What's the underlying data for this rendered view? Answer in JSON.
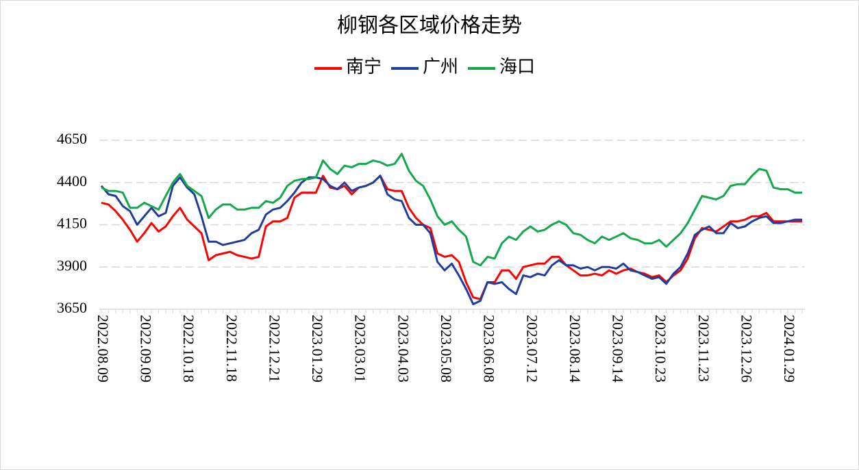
{
  "chart_data": {
    "type": "line",
    "title": "柳钢各区域价格走势",
    "categories": [
      "2022.08.09",
      null,
      null,
      null,
      null,
      null,
      "2022.09.09",
      null,
      null,
      null,
      null,
      null,
      "2022.10.18",
      null,
      null,
      null,
      null,
      null,
      "2022.11.18",
      null,
      null,
      null,
      null,
      null,
      "2022.12.21",
      null,
      null,
      null,
      null,
      null,
      "2023.01.29",
      null,
      null,
      null,
      null,
      null,
      "2023.03.01",
      null,
      null,
      null,
      null,
      null,
      "2023.04.03",
      null,
      null,
      null,
      null,
      null,
      "2023.05.08",
      null,
      null,
      null,
      null,
      null,
      "2023.06.08",
      null,
      null,
      null,
      null,
      null,
      "2023.07.12",
      null,
      null,
      null,
      null,
      null,
      "2023.08.14",
      null,
      null,
      null,
      null,
      null,
      "2023.09.14",
      null,
      null,
      null,
      null,
      null,
      "2023.10.23",
      null,
      null,
      null,
      null,
      null,
      "2023.11.23",
      null,
      null,
      null,
      null,
      null,
      "2023.12.26",
      null,
      null,
      null,
      null,
      null,
      "2024.01.29",
      null,
      null
    ],
    "series": [
      {
        "name": "南宁",
        "color": "#ff0000",
        "values": [
          4280,
          4270,
          4230,
          4180,
          4120,
          4050,
          4100,
          4160,
          4110,
          4140,
          4200,
          4250,
          4180,
          4140,
          4100,
          3940,
          3970,
          3980,
          3990,
          3970,
          3960,
          3950,
          3960,
          4140,
          4170,
          4170,
          4190,
          4310,
          4340,
          4340,
          4340,
          4440,
          4370,
          4360,
          4380,
          4330,
          4370,
          4380,
          4400,
          4440,
          4360,
          4350,
          4350,
          4250,
          4190,
          4150,
          4130,
          3980,
          3960,
          3970,
          3930,
          3810,
          3720,
          3710,
          3810,
          3810,
          3880,
          3880,
          3830,
          3900,
          3910,
          3920,
          3920,
          3960,
          3960,
          3910,
          3880,
          3850,
          3850,
          3860,
          3850,
          3880,
          3860,
          3880,
          3890,
          3870,
          3860,
          3840,
          3850,
          3810,
          3850,
          3880,
          3950,
          4070,
          4130,
          4120,
          4110,
          4140,
          4170,
          4170,
          4180,
          4200,
          4200,
          4220,
          4170,
          4170,
          4170,
          4170,
          4170
        ]
      },
      {
        "name": "广州",
        "color": "#1f3c9e",
        "values": [
          4380,
          4330,
          4320,
          4260,
          4230,
          4150,
          4200,
          4250,
          4200,
          4220,
          4380,
          4430,
          4370,
          4330,
          4200,
          4050,
          4050,
          4030,
          4040,
          4050,
          4060,
          4100,
          4120,
          4210,
          4240,
          4250,
          4290,
          4340,
          4400,
          4430,
          4430,
          4420,
          4380,
          4360,
          4400,
          4350,
          4370,
          4380,
          4400,
          4440,
          4330,
          4300,
          4290,
          4190,
          4150,
          4150,
          4100,
          3930,
          3880,
          3920,
          3850,
          3770,
          3680,
          3700,
          3810,
          3800,
          3810,
          3770,
          3740,
          3850,
          3840,
          3860,
          3850,
          3910,
          3940,
          3910,
          3910,
          3890,
          3900,
          3880,
          3900,
          3900,
          3890,
          3920,
          3880,
          3870,
          3850,
          3830,
          3840,
          3800,
          3860,
          3900,
          3980,
          4090,
          4120,
          4140,
          4100,
          4100,
          4160,
          4130,
          4140,
          4170,
          4190,
          4200,
          4160,
          4160,
          4170,
          4180,
          4180
        ]
      },
      {
        "name": "海口",
        "color": "#13a84b",
        "values": [
          4370,
          4350,
          4350,
          4340,
          4250,
          4250,
          4280,
          4260,
          4240,
          4320,
          4400,
          4450,
          4380,
          4350,
          4320,
          4190,
          4240,
          4270,
          4270,
          4240,
          4240,
          4250,
          4250,
          4290,
          4280,
          4310,
          4380,
          4410,
          4420,
          4420,
          4430,
          4530,
          4480,
          4450,
          4500,
          4490,
          4510,
          4510,
          4530,
          4520,
          4500,
          4510,
          4570,
          4470,
          4410,
          4380,
          4300,
          4200,
          4150,
          4170,
          4120,
          4080,
          3930,
          3910,
          3960,
          3950,
          4040,
          4080,
          4060,
          4110,
          4140,
          4110,
          4120,
          4150,
          4170,
          4150,
          4100,
          4090,
          4060,
          4040,
          4080,
          4060,
          4080,
          4100,
          4070,
          4060,
          4040,
          4040,
          4060,
          4020,
          4060,
          4100,
          4160,
          4240,
          4320,
          4310,
          4300,
          4320,
          4380,
          4390,
          4390,
          4440,
          4480,
          4470,
          4370,
          4360,
          4360,
          4340,
          4340
        ]
      }
    ],
    "ylim": [
      3650,
      4650
    ],
    "yticks": [
      3650,
      3900,
      4150,
      4400,
      4650
    ],
    "grid": true
  }
}
